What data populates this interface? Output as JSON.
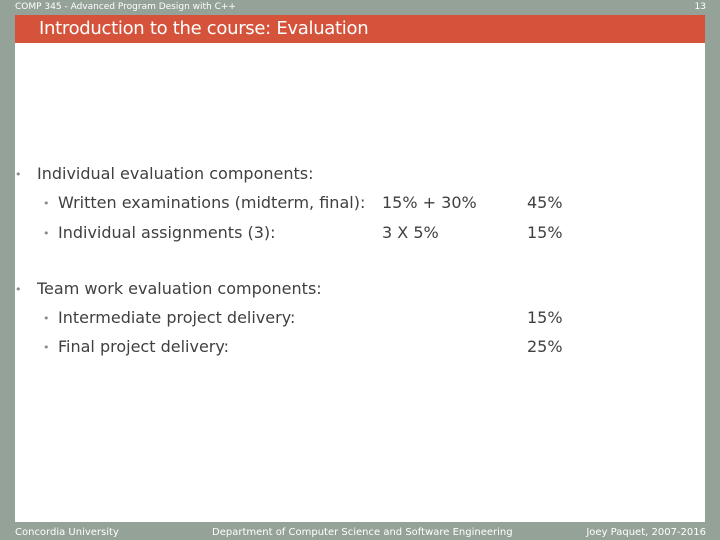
{
  "header": {
    "course_title": "COMP 345 - Advanced Program Design with C++",
    "slide_number": "13"
  },
  "slide": {
    "title": "Introduction to the course: Evaluation",
    "bullet_glyph": "•",
    "sections": [
      {
        "label": "Individual evaluation components:",
        "items": [
          {
            "label": "Written examinations (midterm, final):",
            "detail": "15% + 30%",
            "weight": "45%"
          },
          {
            "label": "Individual assignments (3):",
            "detail": "3 X 5%",
            "weight": "15%"
          }
        ]
      },
      {
        "label": "Team work evaluation components:",
        "items": [
          {
            "label": "Intermediate project delivery:",
            "weight": "15%"
          },
          {
            "label": "Final project delivery:",
            "weight": "25%"
          }
        ]
      }
    ]
  },
  "footer": {
    "university": "Concordia University",
    "department": "Department of Computer Science and Software Engineering",
    "author": "Joey Paquet, 2007-2016"
  },
  "colors": {
    "background": "#95a298",
    "title_bar": "#d5533b",
    "content": "#ffffff",
    "text": "#404040"
  }
}
